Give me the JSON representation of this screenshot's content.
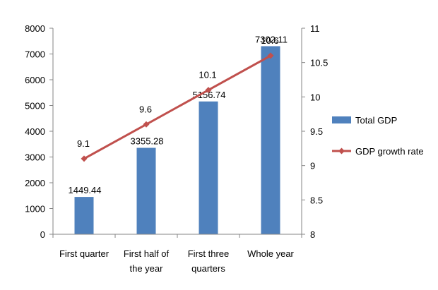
{
  "chart_data": {
    "type": "bar",
    "categories": [
      [
        "First quarter"
      ],
      [
        "First half of",
        "the year"
      ],
      [
        "First three",
        "quarters"
      ],
      [
        "Whole year"
      ]
    ],
    "series": [
      {
        "name": "Total GDP",
        "type": "bar",
        "axis": "left",
        "values": [
          1449.44,
          3355.28,
          5156.74,
          7302.11
        ],
        "labels": [
          "1449.44",
          "3355.28",
          "5156.74",
          "7302.11"
        ],
        "color": "#4f81bd"
      },
      {
        "name": "GDP growth rate",
        "type": "line",
        "axis": "right",
        "values": [
          9.1,
          9.6,
          10.1,
          10.6
        ],
        "labels": [
          "9.1",
          "9.6",
          "10.1",
          "10.6"
        ],
        "color": "#c0504d"
      }
    ],
    "y_left": {
      "min": 0,
      "max": 8000,
      "step": 1000,
      "ticks": [
        "0",
        "1000",
        "2000",
        "3000",
        "4000",
        "5000",
        "6000",
        "7000",
        "8000"
      ]
    },
    "y_right": {
      "min": 8,
      "max": 11,
      "step": 0.5,
      "ticks": [
        "8",
        "8.5",
        "9",
        "9.5",
        "10",
        "10.5",
        "11"
      ]
    },
    "legend_position": "right",
    "grid": false
  }
}
